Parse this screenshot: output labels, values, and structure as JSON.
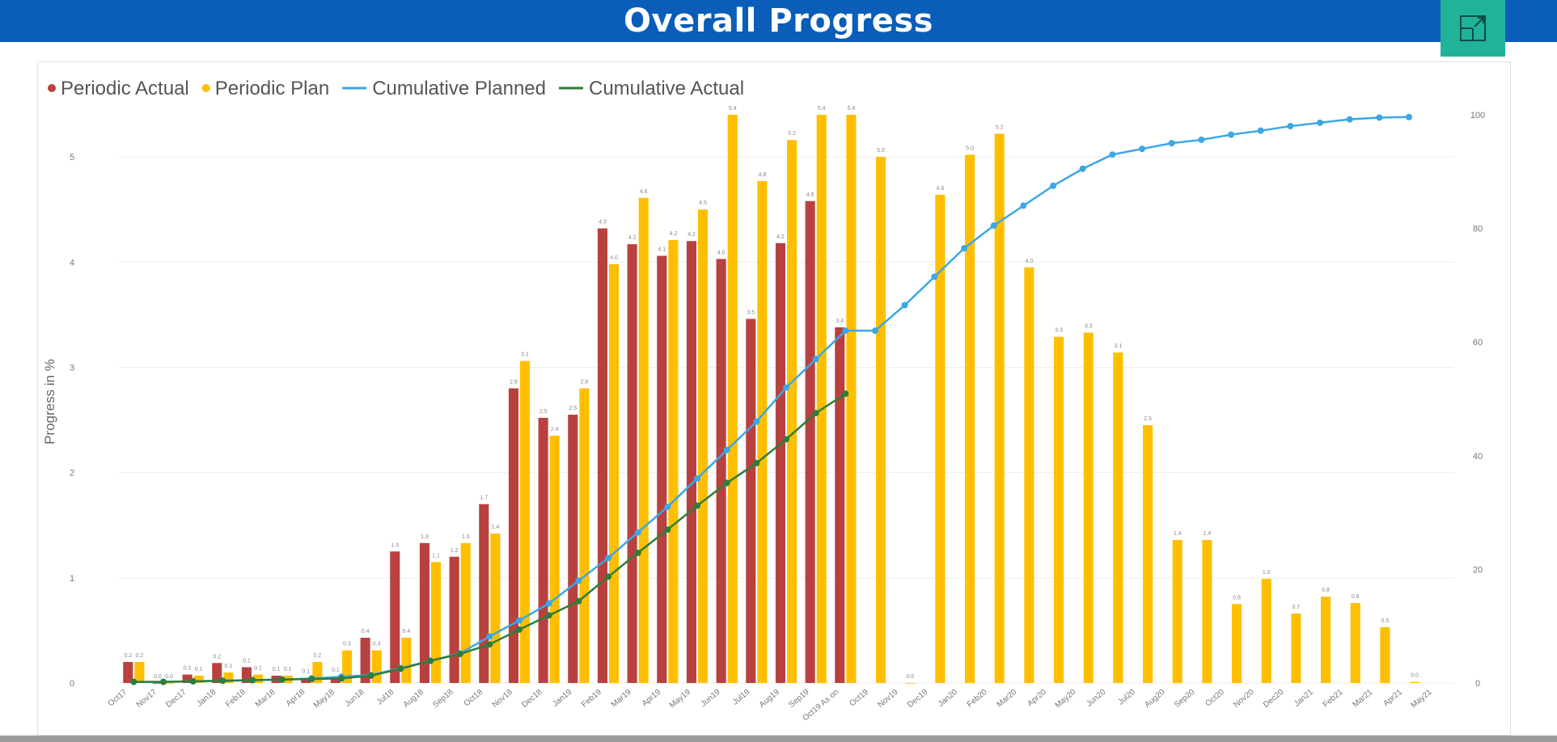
{
  "header": {
    "title": "Overall Progress",
    "expand_icon": "expand-icon"
  },
  "colors": {
    "header_bg": "#0A5DB8",
    "expand_bg": "#20B39A",
    "periodic_actual": "#B8413F",
    "periodic_plan": "#FFBF00",
    "cumulative_planned": "#3BA7E6",
    "cumulative_actual": "#2E7D3A"
  },
  "chart_data": {
    "type": "bar",
    "ylabel": "Progress in %",
    "ylim": [
      0,
      5.4
    ],
    "yticks": [
      "0",
      "1",
      "2",
      "3",
      "4",
      "5"
    ],
    "y2lim": [
      0,
      100
    ],
    "y2ticks": [
      "0",
      "20",
      "40",
      "60",
      "80",
      "100"
    ],
    "grid": true,
    "legend_position": "top-left",
    "categories": [
      "Oct17",
      "Nov17",
      "Dec17",
      "Jan18",
      "Feb18",
      "Mar18",
      "Apr18",
      "May18",
      "Jun18",
      "Jul18",
      "Aug18",
      "Sep18",
      "Oct18",
      "Nov18",
      "Dec18",
      "Jan19",
      "Feb19",
      "Mar19",
      "Apr19",
      "May19",
      "Jun19",
      "Jul19",
      "Aug19",
      "Sep19",
      "Oct19 As on",
      "Oct19",
      "Nov19",
      "Dec19",
      "Jan20",
      "Feb20",
      "Mar20",
      "Apr20",
      "May20",
      "Jun20",
      "Jul20",
      "Aug20",
      "Sep20",
      "Oct20",
      "Nov20",
      "Dec20",
      "Jan21",
      "Feb21",
      "Mar21",
      "Apr21",
      "May21"
    ],
    "series": [
      {
        "name": "Periodic Actual",
        "kind": "bar",
        "axis": "left",
        "values": [
          0.2,
          0.0,
          0.08,
          0.19,
          0.15,
          0.07,
          0.05,
          0.06,
          0.43,
          1.25,
          1.33,
          1.2,
          1.7,
          2.8,
          2.52,
          2.55,
          4.32,
          4.17,
          4.06,
          4.2,
          4.03,
          3.46,
          4.18,
          4.58,
          3.38,
          null,
          null,
          null,
          null,
          null,
          null,
          null,
          null,
          null,
          null,
          null,
          null,
          null,
          null,
          null,
          null,
          null,
          null,
          null,
          null
        ]
      },
      {
        "name": "Periodic Plan",
        "kind": "bar",
        "axis": "left",
        "values": [
          0.2,
          0.0,
          0.07,
          0.1,
          0.08,
          0.07,
          0.2,
          0.31,
          0.31,
          0.43,
          1.15,
          1.33,
          1.42,
          3.06,
          2.35,
          2.8,
          3.98,
          4.61,
          4.21,
          4.5,
          5.4,
          4.77,
          5.16,
          5.4,
          5.4,
          5.0,
          0.0,
          4.64,
          5.02,
          5.22,
          3.95,
          3.29,
          3.33,
          3.14,
          2.45,
          1.36,
          1.36,
          0.75,
          0.99,
          0.66,
          0.82,
          0.76,
          0.53,
          0.01,
          null
        ]
      },
      {
        "name": "Cumulative Planned",
        "kind": "line",
        "axis": "right",
        "values": [
          0.2,
          0.2,
          0.3,
          0.4,
          0.5,
          0.6,
          0.8,
          1.1,
          1.4,
          2.6,
          3.9,
          5.2,
          8.2,
          11.0,
          14.0,
          18.0,
          22.0,
          26.5,
          31.0,
          36.0,
          41.0,
          46.0,
          52.0,
          57.0,
          62.0,
          62.0,
          66.5,
          71.5,
          76.5,
          80.5,
          84.0,
          87.5,
          90.5,
          93.0,
          94.0,
          95.0,
          95.6,
          96.5,
          97.2,
          98.0,
          98.6,
          99.2,
          99.5,
          99.6,
          null
        ]
      },
      {
        "name": "Cumulative Actual",
        "kind": "line",
        "axis": "right",
        "values": [
          0.2,
          0.2,
          0.3,
          0.4,
          0.5,
          0.6,
          0.7,
          0.8,
          1.3,
          2.5,
          3.9,
          5.1,
          6.8,
          9.4,
          11.9,
          14.4,
          18.7,
          22.9,
          27.0,
          31.2,
          35.2,
          38.7,
          42.9,
          47.5,
          50.9,
          null,
          null,
          null,
          null,
          null,
          null,
          null,
          null,
          null,
          null,
          null,
          null,
          null,
          null,
          null,
          null,
          null,
          null,
          null,
          null
        ]
      }
    ]
  }
}
